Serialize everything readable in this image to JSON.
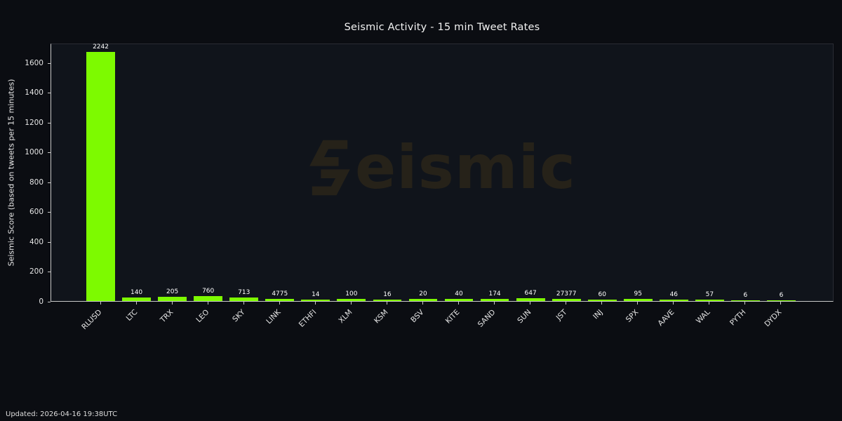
{
  "chart_data": {
    "type": "bar",
    "title": "Seismic Activity - 15 min Tweet Rates",
    "ylabel": "Seismic Score (based on tweets per 15 minutes)",
    "xlabel": "",
    "categories": [
      "RLUSD",
      "LTC",
      "TRX",
      "LEO",
      "SKY",
      "LINK",
      "ETHFI",
      "XLM",
      "KSM",
      "BSV",
      "KITE",
      "SAND",
      "SUN",
      "JST",
      "INJ",
      "SPX",
      "AAVE",
      "WAL",
      "PYTH",
      "DYDX"
    ],
    "values": [
      2242,
      140,
      205,
      760,
      713,
      4775,
      14,
      100,
      16,
      20,
      40,
      174,
      647,
      27377,
      60,
      95,
      46,
      57,
      6,
      6
    ],
    "bar_display_heights": [
      1670,
      25,
      28,
      35,
      22,
      15,
      10,
      14,
      10,
      12,
      12,
      16,
      20,
      12,
      10,
      12,
      10,
      10,
      6,
      6
    ],
    "ylim": [
      0,
      1732
    ],
    "yticks": [
      0,
      200,
      400,
      600,
      800,
      1000,
      1200,
      1400,
      1600
    ],
    "grid": false,
    "legend": false,
    "bar_color": "#7dfa00",
    "annotation": "raw values printed above each bar"
  },
  "watermark": {
    "icon": "seismic-s-logo",
    "text": "eismic"
  },
  "footer": {
    "updated": "Updated: 2026-04-16 19:38UTC"
  },
  "colors": {
    "background": "#0b0d12",
    "plot_background": "#10141b",
    "bar": "#7dfa00",
    "axis": "#c9c9c9",
    "text": "#ffffff",
    "watermark": "#262219"
  }
}
